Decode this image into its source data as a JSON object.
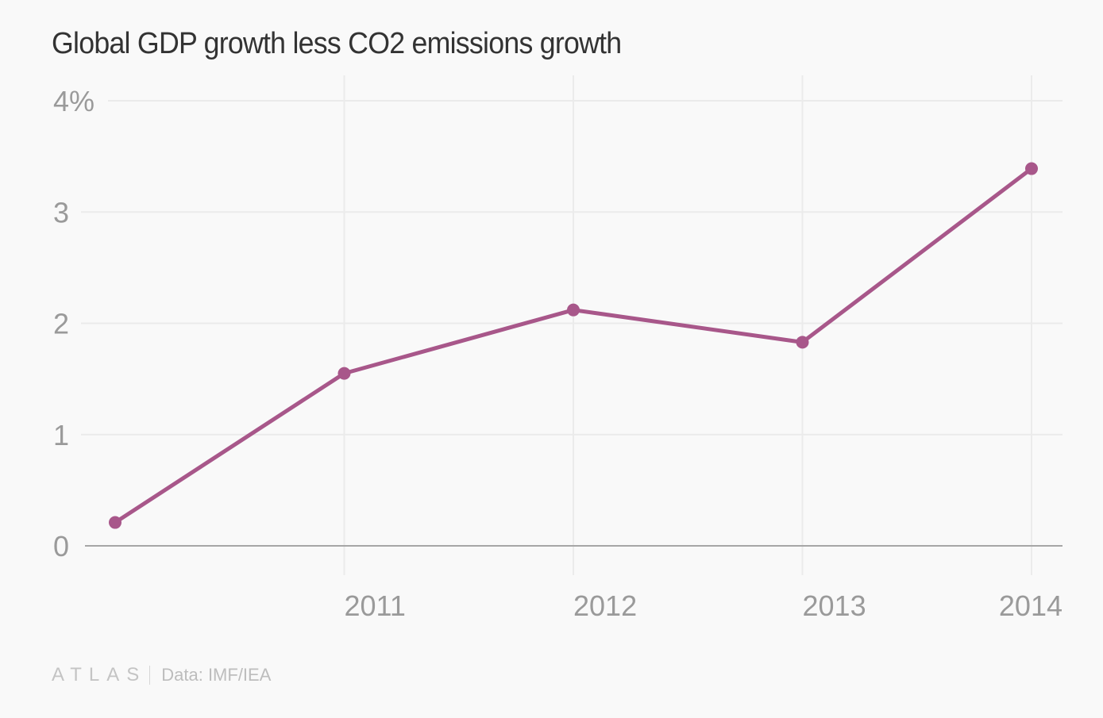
{
  "chart_data": {
    "type": "line",
    "title": "Global GDP growth less CO2 emissions growth",
    "xlabel": "",
    "ylabel": "",
    "x": [
      2010,
      2011,
      2012,
      2013,
      2014
    ],
    "x_tick_labels": [
      "2011",
      "2012",
      "2013",
      "2014"
    ],
    "x_ticks": [
      2011,
      2012,
      2013,
      2014
    ],
    "xlim": [
      2009.87,
      2014.13
    ],
    "y_ticks": [
      0,
      1,
      2,
      3,
      4
    ],
    "y_tick_labels": [
      "0",
      "1",
      "2",
      "3",
      "4%"
    ],
    "ylim": [
      0,
      4
    ],
    "grid": true,
    "legend": "none",
    "series": [
      {
        "name": "GDP growth less CO2 emissions growth",
        "color": "#a8578a",
        "values": [
          0.21,
          1.55,
          2.12,
          1.83,
          3.39
        ]
      }
    ]
  },
  "footer": {
    "logo": "ATLAS",
    "source": "Data: IMF/IEA"
  }
}
